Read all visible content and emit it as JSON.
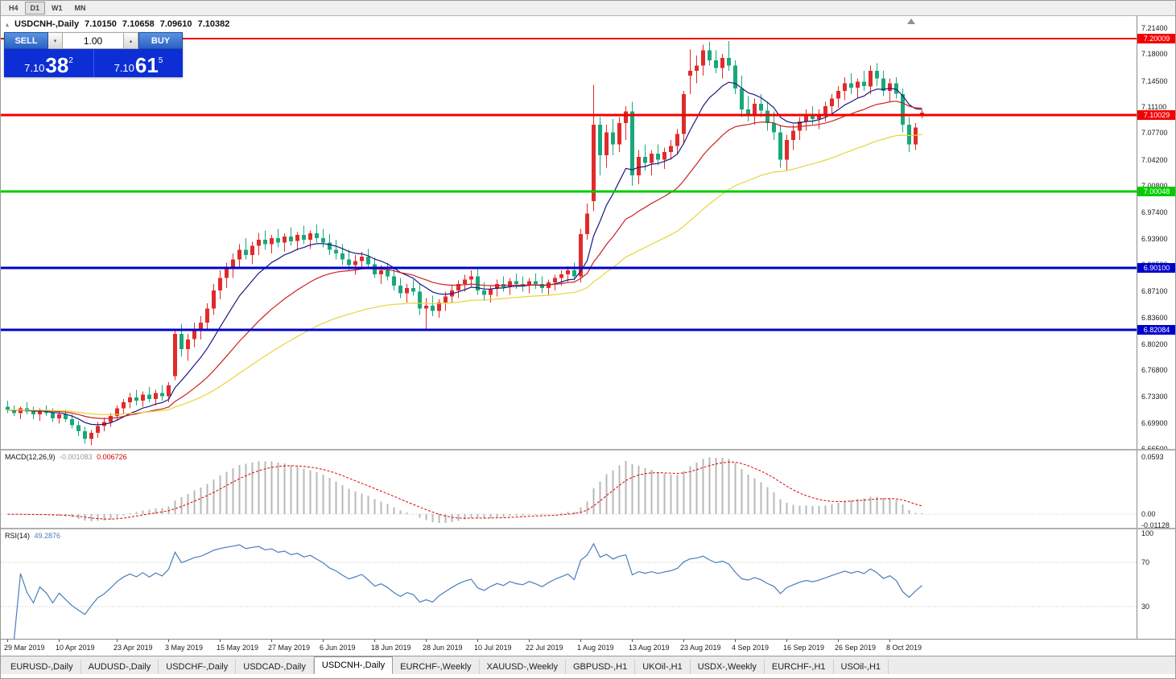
{
  "toolbar": {
    "timeframe_buttons": [
      "H4",
      "D1",
      "W1",
      "MN"
    ],
    "active": "D1"
  },
  "window": {
    "symbol_title": "USDCNH-,Daily",
    "ohlc": {
      "open": "7.10150",
      "high": "7.10658",
      "low": "7.09610",
      "close": "7.10382"
    }
  },
  "one_click_trading": {
    "sell_label": "SELL",
    "buy_label": "BUY",
    "volume": "1.00",
    "toggle_icon": "▴",
    "spinner_down_icon": "▾",
    "spinner_up_icon": "▴",
    "bid": {
      "prefix": "7.10",
      "big": "38",
      "sup": "2"
    },
    "ask": {
      "prefix": "7.10",
      "big": "61",
      "sup": "5"
    }
  },
  "chart_data": {
    "type": "candlestick",
    "symbol": "USDCNH",
    "timeframe": "Daily",
    "price_scale": {
      "max": 7.2295,
      "min": 6.663
    },
    "axis_ticks": [
      "7.21400",
      "7.18000",
      "7.14500",
      "7.11100",
      "7.07700",
      "7.04200",
      "7.00800",
      "6.97400",
      "6.93900",
      "6.90500",
      "6.87100",
      "6.83600",
      "6.80200",
      "6.76800",
      "6.73300",
      "6.69900",
      "6.66500"
    ],
    "hlines": [
      {
        "price": 7.20009,
        "label": "7.20009",
        "color": "#f20000",
        "width": 2
      },
      {
        "price": 7.10029,
        "label": "7.10029",
        "color": "#f20000",
        "width": 3
      },
      {
        "price": 7.00048,
        "label": "7.00048",
        "color": "#00cc00",
        "width": 3
      },
      {
        "price": 6.901,
        "label": "6.90100",
        "color": "#0000cc",
        "width": 3
      },
      {
        "price": 6.82084,
        "label": "6.82084",
        "color": "#0000cc",
        "width": 3
      }
    ],
    "candle_colors": {
      "bull": "#e02b2b",
      "bear": "#18a87c"
    },
    "moving_averages": [
      {
        "period": 10,
        "color": "#1a1a80"
      },
      {
        "period": 25,
        "color": "#cc2222"
      },
      {
        "period": 55,
        "color": "#e8d43c"
      }
    ],
    "candles": [
      [
        6.72,
        6.728,
        6.712,
        6.716
      ],
      [
        6.716,
        6.722,
        6.708,
        6.712
      ],
      [
        6.712,
        6.72,
        6.704,
        6.718
      ],
      [
        6.718,
        6.726,
        6.71,
        6.714
      ],
      [
        6.714,
        6.72,
        6.704,
        6.71
      ],
      [
        6.71,
        6.718,
        6.702,
        6.715
      ],
      [
        6.715,
        6.722,
        6.708,
        6.712
      ],
      [
        6.712,
        6.718,
        6.7,
        6.705
      ],
      [
        6.705,
        6.714,
        6.698,
        6.71
      ],
      [
        6.71,
        6.716,
        6.7,
        6.704
      ],
      [
        6.704,
        6.71,
        6.692,
        6.696
      ],
      [
        6.696,
        6.702,
        6.682,
        6.688
      ],
      [
        6.688,
        6.694,
        6.672,
        6.678
      ],
      [
        6.678,
        6.69,
        6.67,
        6.686
      ],
      [
        6.686,
        6.7,
        6.68,
        6.695
      ],
      [
        6.695,
        6.706,
        6.688,
        6.7
      ],
      [
        6.7,
        6.712,
        6.694,
        6.708
      ],
      [
        6.708,
        6.722,
        6.702,
        6.718
      ],
      [
        6.718,
        6.73,
        6.71,
        6.726
      ],
      [
        6.726,
        6.738,
        6.718,
        6.732
      ],
      [
        6.732,
        6.742,
        6.722,
        6.728
      ],
      [
        6.728,
        6.74,
        6.72,
        6.736
      ],
      [
        6.736,
        6.746,
        6.726,
        6.73
      ],
      [
        6.73,
        6.742,
        6.722,
        6.738
      ],
      [
        6.738,
        6.748,
        6.728,
        6.734
      ],
      [
        6.734,
        6.752,
        6.726,
        6.748
      ],
      [
        6.76,
        6.822,
        6.755,
        6.815
      ],
      [
        6.815,
        6.828,
        6.785,
        6.795
      ],
      [
        6.795,
        6.815,
        6.78,
        6.808
      ],
      [
        6.808,
        6.83,
        6.798,
        6.822
      ],
      [
        6.822,
        6.838,
        6.808,
        6.83
      ],
      [
        6.83,
        6.855,
        6.82,
        6.848
      ],
      [
        6.848,
        6.88,
        6.84,
        6.872
      ],
      [
        6.872,
        6.898,
        6.86,
        6.888
      ],
      [
        6.888,
        6.908,
        6.875,
        6.9
      ],
      [
        6.9,
        6.92,
        6.888,
        6.912
      ],
      [
        6.912,
        6.932,
        6.9,
        6.925
      ],
      [
        6.925,
        6.94,
        6.912,
        6.918
      ],
      [
        6.918,
        6.935,
        6.906,
        6.93
      ],
      [
        6.93,
        6.947,
        6.918,
        6.938
      ],
      [
        6.938,
        6.95,
        6.925,
        6.932
      ],
      [
        6.932,
        6.944,
        6.92,
        6.94
      ],
      [
        6.94,
        6.952,
        6.928,
        6.934
      ],
      [
        6.934,
        6.946,
        6.922,
        6.942
      ],
      [
        6.942,
        6.954,
        6.93,
        6.936
      ],
      [
        6.936,
        6.948,
        6.924,
        6.944
      ],
      [
        6.944,
        6.956,
        6.932,
        6.938
      ],
      [
        6.938,
        6.95,
        6.926,
        6.946
      ],
      [
        6.946,
        6.958,
        6.934,
        6.94
      ],
      [
        6.94,
        6.952,
        6.928,
        6.934
      ],
      [
        6.934,
        6.945,
        6.918,
        6.925
      ],
      [
        6.925,
        6.938,
        6.912,
        6.92
      ],
      [
        6.92,
        6.932,
        6.905,
        6.912
      ],
      [
        6.912,
        6.925,
        6.898,
        6.905
      ],
      [
        6.905,
        6.918,
        6.892,
        6.91
      ],
      [
        6.91,
        6.922,
        6.9,
        6.916
      ],
      [
        6.916,
        6.926,
        6.9,
        6.906
      ],
      [
        6.906,
        6.915,
        6.888,
        6.893
      ],
      [
        6.893,
        6.905,
        6.88,
        6.898
      ],
      [
        6.898,
        6.908,
        6.885,
        6.89
      ],
      [
        6.89,
        6.9,
        6.872,
        6.878
      ],
      [
        6.878,
        6.888,
        6.862,
        6.868
      ],
      [
        6.868,
        6.88,
        6.856,
        6.875
      ],
      [
        6.875,
        6.886,
        6.865,
        6.87
      ],
      [
        6.87,
        6.88,
        6.84,
        6.848
      ],
      [
        6.848,
        6.862,
        6.822,
        6.852
      ],
      [
        6.852,
        6.865,
        6.838,
        6.845
      ],
      [
        6.845,
        6.86,
        6.836,
        6.856
      ],
      [
        6.856,
        6.87,
        6.845,
        6.864
      ],
      [
        6.864,
        6.878,
        6.855,
        6.872
      ],
      [
        6.872,
        6.885,
        6.862,
        6.88
      ],
      [
        6.88,
        6.892,
        6.87,
        6.886
      ],
      [
        6.886,
        6.898,
        6.876,
        6.89
      ],
      [
        6.89,
        6.9,
        6.866,
        6.872
      ],
      [
        6.872,
        6.882,
        6.858,
        6.866
      ],
      [
        6.866,
        6.878,
        6.856,
        6.874
      ],
      [
        6.874,
        6.886,
        6.864,
        6.88
      ],
      [
        6.88,
        6.89,
        6.87,
        6.876
      ],
      [
        6.876,
        6.888,
        6.866,
        6.884
      ],
      [
        6.884,
        6.894,
        6.874,
        6.88
      ],
      [
        6.88,
        6.89,
        6.87,
        6.878
      ],
      [
        6.878,
        6.888,
        6.868,
        6.884
      ],
      [
        6.884,
        6.894,
        6.874,
        6.88
      ],
      [
        6.88,
        6.89,
        6.868,
        6.875
      ],
      [
        6.875,
        6.886,
        6.865,
        6.882
      ],
      [
        6.882,
        6.892,
        6.872,
        6.888
      ],
      [
        6.888,
        6.898,
        6.878,
        6.893
      ],
      [
        6.893,
        6.903,
        6.883,
        6.898
      ],
      [
        6.898,
        6.908,
        6.885,
        6.89
      ],
      [
        6.89,
        6.952,
        6.882,
        6.945
      ],
      [
        6.945,
        6.985,
        6.938,
        6.972
      ],
      [
        6.988,
        7.14,
        6.975,
        7.088
      ],
      [
        7.088,
        7.098,
        7.022,
        7.048
      ],
      [
        7.048,
        7.088,
        7.032,
        7.078
      ],
      [
        7.078,
        7.095,
        7.048,
        7.062
      ],
      [
        7.062,
        7.098,
        7.052,
        7.09
      ],
      [
        7.09,
        7.112,
        7.068,
        7.105
      ],
      [
        7.105,
        7.118,
        7.008,
        7.022
      ],
      [
        7.022,
        7.055,
        7.01,
        7.046
      ],
      [
        7.046,
        7.062,
        7.028,
        7.038
      ],
      [
        7.038,
        7.055,
        7.022,
        7.05
      ],
      [
        7.05,
        7.062,
        7.035,
        7.042
      ],
      [
        7.042,
        7.058,
        7.03,
        7.052
      ],
      [
        7.052,
        7.068,
        7.042,
        7.06
      ],
      [
        7.06,
        7.082,
        7.05,
        7.076
      ],
      [
        7.076,
        7.132,
        7.062,
        7.128
      ],
      [
        7.152,
        7.186,
        7.128,
        7.158
      ],
      [
        7.158,
        7.178,
        7.142,
        7.165
      ],
      [
        7.165,
        7.192,
        7.152,
        7.185
      ],
      [
        7.185,
        7.196,
        7.165,
        7.172
      ],
      [
        7.172,
        7.185,
        7.155,
        7.162
      ],
      [
        7.162,
        7.18,
        7.148,
        7.175
      ],
      [
        7.175,
        7.197,
        7.158,
        7.165
      ],
      [
        7.165,
        7.172,
        7.128,
        7.135
      ],
      [
        7.135,
        7.152,
        7.098,
        7.108
      ],
      [
        7.108,
        7.125,
        7.092,
        7.102
      ],
      [
        7.102,
        7.122,
        7.088,
        7.115
      ],
      [
        7.115,
        7.128,
        7.098,
        7.106
      ],
      [
        7.106,
        7.118,
        7.08,
        7.09
      ],
      [
        7.09,
        7.105,
        7.068,
        7.078
      ],
      [
        7.078,
        7.088,
        7.032,
        7.042
      ],
      [
        7.042,
        7.075,
        7.028,
        7.068
      ],
      [
        7.068,
        7.088,
        7.055,
        7.08
      ],
      [
        7.08,
        7.098,
        7.068,
        7.092
      ],
      [
        7.092,
        7.108,
        7.08,
        7.1
      ],
      [
        7.1,
        7.112,
        7.088,
        7.095
      ],
      [
        7.095,
        7.108,
        7.082,
        7.102
      ],
      [
        7.102,
        7.118,
        7.092,
        7.112
      ],
      [
        7.112,
        7.128,
        7.102,
        7.122
      ],
      [
        7.122,
        7.138,
        7.11,
        7.132
      ],
      [
        7.132,
        7.15,
        7.12,
        7.142
      ],
      [
        7.142,
        7.155,
        7.128,
        7.136
      ],
      [
        7.136,
        7.148,
        7.122,
        7.144
      ],
      [
        7.144,
        7.158,
        7.132,
        7.138
      ],
      [
        7.138,
        7.165,
        7.128,
        7.158
      ],
      [
        7.158,
        7.168,
        7.138,
        7.148
      ],
      [
        7.148,
        7.158,
        7.125,
        7.132
      ],
      [
        7.132,
        7.148,
        7.118,
        7.142
      ],
      [
        7.142,
        7.15,
        7.122,
        7.128
      ],
      [
        7.128,
        7.135,
        7.078,
        7.088
      ],
      [
        7.088,
        7.098,
        7.052,
        7.062
      ],
      [
        7.062,
        7.09,
        7.055,
        7.084
      ],
      [
        7.1015,
        7.1066,
        7.0961,
        7.1038
      ]
    ],
    "date_labels": [
      {
        "index": 0,
        "label": "29 Mar 2019"
      },
      {
        "index": 8,
        "label": "10 Apr 2019"
      },
      {
        "index": 17,
        "label": "23 Apr 2019"
      },
      {
        "index": 25,
        "label": "3 May 2019"
      },
      {
        "index": 33,
        "label": "15 May 2019"
      },
      {
        "index": 41,
        "label": "27 May 2019"
      },
      {
        "index": 49,
        "label": "6 Jun 2019"
      },
      {
        "index": 57,
        "label": "18 Jun 2019"
      },
      {
        "index": 65,
        "label": "28 Jun 2019"
      },
      {
        "index": 73,
        "label": "10 Jul 2019"
      },
      {
        "index": 81,
        "label": "22 Jul 2019"
      },
      {
        "index": 89,
        "label": "1 Aug 2019"
      },
      {
        "index": 97,
        "label": "13 Aug 2019"
      },
      {
        "index": 105,
        "label": "23 Aug 2019"
      },
      {
        "index": 113,
        "label": "4 Sep 2019"
      },
      {
        "index": 121,
        "label": "16 Sep 2019"
      },
      {
        "index": 129,
        "label": "26 Sep 2019"
      },
      {
        "index": 137,
        "label": "8 Oct 2019"
      }
    ]
  },
  "macd_panel": {
    "label": "MACD(12,26,9)",
    "main_value": "-0.001083",
    "signal_value": "0.006726",
    "params": {
      "fast": 12,
      "slow": 26,
      "signal": 9
    },
    "scale": {
      "max": 0.0655,
      "min": -0.0155
    },
    "axis_labels": [
      {
        "value": 0.0593,
        "text": "0.0593"
      },
      {
        "value": 0,
        "text": "0.00"
      },
      {
        "value": -0.01128,
        "text": "-0.01128"
      }
    ],
    "histogram_color": "#b8b8b8",
    "signal_color": "#e00000"
  },
  "rsi_panel": {
    "label": "RSI(14)",
    "value": "49.2876",
    "period": 14,
    "scale": {
      "max": 100,
      "min": 0
    },
    "levels": [
      {
        "value": 100,
        "text": "100",
        "line": false
      },
      {
        "value": 70,
        "text": "70",
        "line": true
      },
      {
        "value": 30,
        "text": "30",
        "line": true
      }
    ],
    "line_color": "#4a7ebb"
  },
  "tab_bar": {
    "tabs": [
      {
        "label": "EURUSD-,Daily",
        "active": false
      },
      {
        "label": "AUDUSD-,Daily",
        "active": false
      },
      {
        "label": "USDCHF-,Daily",
        "active": false
      },
      {
        "label": "USDCAD-,Daily",
        "active": false
      },
      {
        "label": "USDCNH-,Daily",
        "active": true
      },
      {
        "label": "EURCHF-,Weekly",
        "active": false
      },
      {
        "label": "XAUUSD-,Weekly",
        "active": false
      },
      {
        "label": "GBPUSD-,H1",
        "active": false
      },
      {
        "label": "UKOil-,H1",
        "active": false
      },
      {
        "label": "USDX-,Weekly",
        "active": false
      },
      {
        "label": "EURCHF-,H1",
        "active": false
      },
      {
        "label": "USOil-,H1",
        "active": false
      }
    ]
  }
}
